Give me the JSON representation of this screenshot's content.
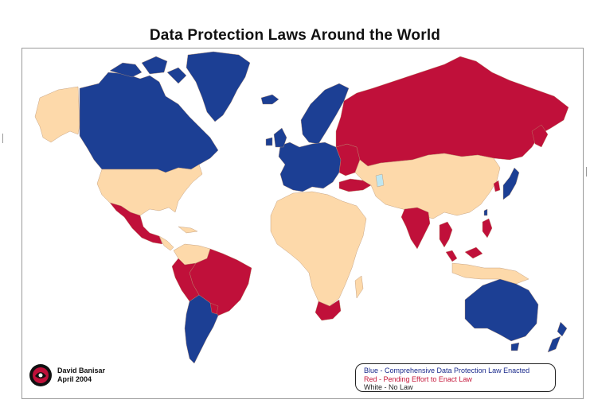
{
  "title": "Data Protection Laws Around the World",
  "author": "David Banisar",
  "date": "April 2004",
  "legend": [
    {
      "label": "Blue - Comprehensive Data Protection Law Enacted",
      "color": "#1c3f94"
    },
    {
      "label": "Red -  Pending Effort to Enact Law",
      "color": "#c0103a"
    },
    {
      "label": "White - No Law",
      "color": "#fdd8a8"
    }
  ],
  "colors": {
    "blue": "#1c3f94",
    "red": "#c0103a",
    "none": "#fdd9aa",
    "border": "#c9a680"
  },
  "regions": {
    "blue": [
      "Canada",
      "Greenland",
      "Iceland",
      "Norway",
      "Sweden",
      "Finland",
      "Western Europe",
      "Argentina",
      "Chile",
      "Australia",
      "New Zealand",
      "Japan",
      "Hong Kong",
      "Taiwan"
    ],
    "red": [
      "Russia",
      "Mexico",
      "Brazil",
      "Peru",
      "Bolivia",
      "India",
      "Thailand",
      "South Africa",
      "Turkey",
      "Malaysia",
      "Philippines"
    ],
    "none": [
      "United States",
      "Alaska",
      "Africa",
      "Middle East",
      "China",
      "Central Asia",
      "Indonesia"
    ]
  },
  "logo_icon": "privacy-international-logo"
}
